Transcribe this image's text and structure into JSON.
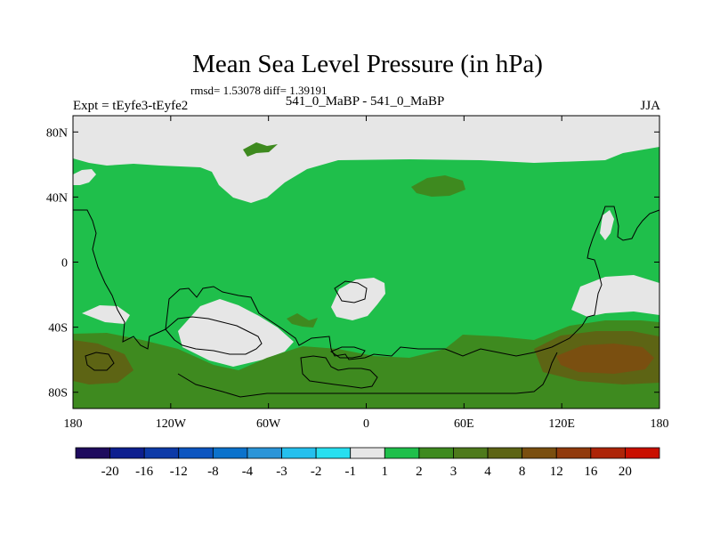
{
  "title": "Mean Sea Level Pressure (in hPa)",
  "stats": "rmsd= 1.53078 diff= 1.39191",
  "expt": "Expt = tEyfe3-tEyfe2",
  "period": "541_0_MaBP - 541_0_MaBP",
  "season": "JJA",
  "map": {
    "lat_ticks": [
      "80N",
      "40N",
      "0",
      "40S",
      "80S"
    ],
    "lat_values": [
      80,
      40,
      0,
      -40,
      -80
    ],
    "lon_ticks": [
      "180",
      "120W",
      "60W",
      "0",
      "60E",
      "120E",
      "180"
    ],
    "lon_values": [
      -180,
      -120,
      -60,
      0,
      60,
      120,
      180
    ],
    "lon_range": [
      -180,
      180
    ],
    "lat_range": [
      -90,
      90
    ]
  },
  "colorbar": {
    "labels": [
      "-20",
      "-16",
      "-12",
      "-8",
      "-4",
      "-3",
      "-2",
      "-1",
      "1",
      "2",
      "3",
      "4",
      "8",
      "12",
      "16",
      "20"
    ],
    "colors": [
      "#1e0b5e",
      "#0d1f8f",
      "#0d3aa8",
      "#0c55c0",
      "#0b72cc",
      "#2b95d8",
      "#25c0ee",
      "#28dff0",
      "#e6e6e6",
      "#1fbf4b",
      "#3e8a1f",
      "#4e7a1c",
      "#5d6414",
      "#7a4f10",
      "#913a0c",
      "#ad2408",
      "#c90f00"
    ]
  },
  "colors": {
    "ocean_low": "#e6e6e6",
    "level_1_2": "#1fbf4b",
    "level_2_3": "#3e8a1f",
    "level_3_4": "#4e7a1c",
    "level_4_8": "#5d6414",
    "level_8_12": "#7a4f10"
  }
}
